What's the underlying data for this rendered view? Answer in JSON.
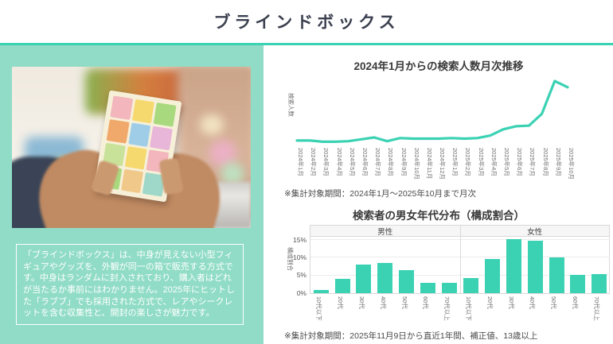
{
  "page": {
    "title": "ブラインドボックス"
  },
  "colors": {
    "accent_teal": "#3bd2b4",
    "panel_mint": "#90dcc6",
    "title_text": "#3c4150",
    "chart_title_text": "#3a3a3a",
    "axis_text": "#707070",
    "note_text": "#4a4a4a"
  },
  "left_panel": {
    "description": "「ブラインドボックス」は、中身が見えない小型フィギュアやグッズを、外観が同一の箱で販売する方式です。中身はランダムに封入されており、購入者はどれが当たるか事前にはわかりません。2025年にヒットした「ラブブ」でも採用された方式で、レアやシークレットを含む収集性と、開封の楽しさが魅力です。"
  },
  "chart_data": [
    {
      "type": "line",
      "title": "2024年1月からの検索人数月次推移",
      "ylabel": "検索人数",
      "x": [
        "2024年1月",
        "2024年2月",
        "2024年3月",
        "2024年4月",
        "2024年5月",
        "2024年6月",
        "2024年7月",
        "2024年8月",
        "2024年9月",
        "2024年10月",
        "2024年11月",
        "2024年12月",
        "2025年1月",
        "2025年2月",
        "2025年3月",
        "2025年4月",
        "2025年5月",
        "2025年6月",
        "2025年7月",
        "2025年8月",
        "2025年9月",
        "2025年10月"
      ],
      "relative_values": [
        4,
        4,
        2,
        2,
        3,
        6,
        9,
        3,
        8,
        7,
        7,
        7,
        8,
        7,
        8,
        12,
        22,
        27,
        28,
        47,
        100,
        90
      ],
      "value_note": "relative index, no numeric y-axis shown; peak 2025年9月 = 100",
      "line_color": "#3bd2b4",
      "grid": false,
      "note": "※集計対象期間：2024年1月～2025年10月まで月次"
    },
    {
      "type": "bar",
      "title": "検索者の男女年代分布（構成割合）",
      "ylabel": "構成割合",
      "categories": [
        "10代以下",
        "20代",
        "30代",
        "40代",
        "50代",
        "60代",
        "70代以上"
      ],
      "series": [
        {
          "name": "男性",
          "values": [
            1.0,
            4.0,
            8.0,
            8.6,
            6.6,
            3.0,
            3.0
          ]
        },
        {
          "name": "女性",
          "values": [
            4.2,
            9.6,
            15.3,
            14.8,
            10.2,
            5.2,
            5.3
          ]
        }
      ],
      "yticks": [
        "0%",
        "5%",
        "10%",
        "15%"
      ],
      "ylim": [
        0,
        16.2
      ],
      "unit": "%",
      "bar_color": "#3bd2b4",
      "grid": true,
      "note": "※集計対象期間：2025年11月9日から直近1年間、補正値、13歳以上"
    }
  ]
}
